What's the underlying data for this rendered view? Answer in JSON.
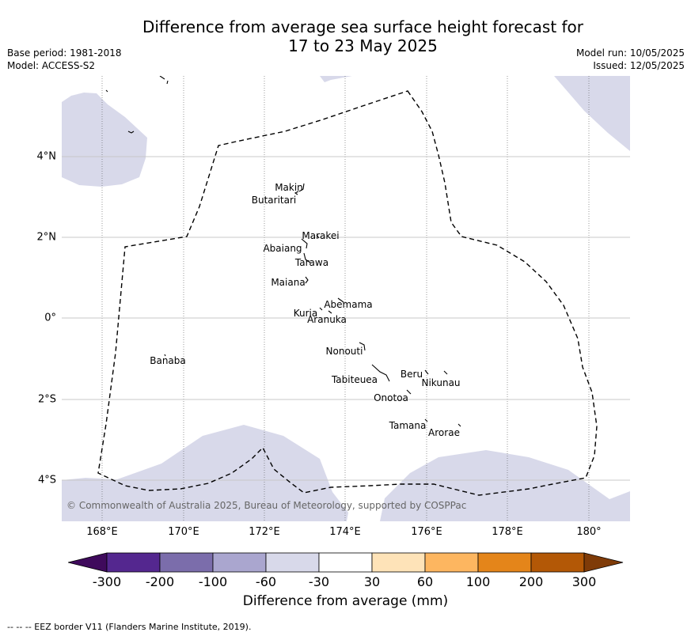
{
  "title_line1": "Difference from average sea surface height forecast for",
  "title_line2": "17 to 23 May 2025",
  "base_period": "Base period: 1981-2018",
  "model": "Model: ACCESS-S2",
  "model_run": "Model run: 10/05/2025",
  "issued": "Issued: 12/05/2025",
  "latitude_ticks": [
    "4°N",
    "2°N",
    "0°",
    "2°S",
    "4°S"
  ],
  "longitude_ticks": [
    "168°E",
    "170°E",
    "172°E",
    "174°E",
    "176°E",
    "178°E",
    "180°"
  ],
  "places": {
    "makin": "Makin",
    "butaritari": "Butaritari",
    "marakei": "Marakei",
    "abaiang": "Abaiang",
    "tarawa": "Tarawa",
    "maiana": "Maiana",
    "abemama": "Abemama",
    "kuria": "Kuria",
    "aranuka": "Aranuka",
    "nonouti": "Nonouti",
    "banaba": "Banaba",
    "beru": "Beru",
    "nikunau": "Nikunau",
    "tabiteuea": "Tabiteuea",
    "onotoa": "Onotoa",
    "tamana": "Tamana",
    "arorae": "Arorae"
  },
  "copyright": "© Commonwealth of Australia 2025, Bureau of Meteorology, supported by COSPPac",
  "colorbar": {
    "labels": [
      "-300",
      "-200",
      "-100",
      "-60",
      "-30",
      "30",
      "60",
      "100",
      "200",
      "300"
    ],
    "colors": [
      "#3f0a5c",
      "#54278f",
      "#7b6dab",
      "#aaa6cf",
      "#d8d9ea",
      "#ffffff",
      "#fee3b8",
      "#fdb660",
      "#e4851a",
      "#b35806",
      "#7f3b08"
    ],
    "title": "Difference from average (mm)"
  },
  "footnote": "--  --  -- EEZ border V11 (Flanders Marine Institute, 2019).",
  "shade_color": "#d8d9ea"
}
